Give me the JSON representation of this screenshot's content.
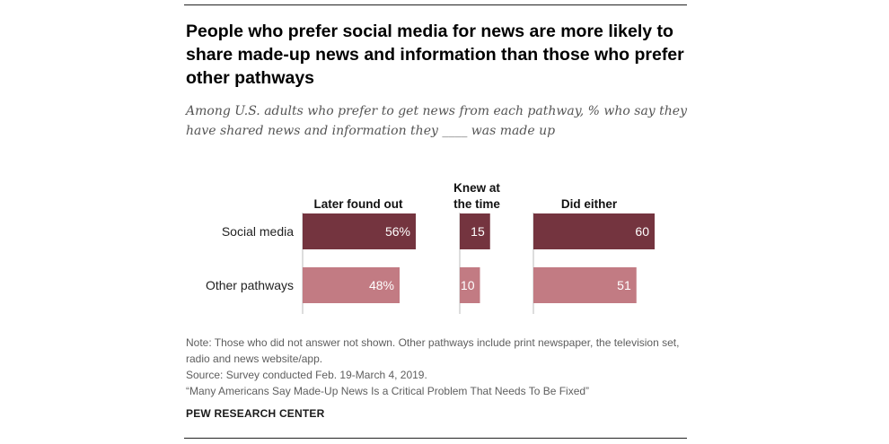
{
  "title": "People who prefer social media for news are more likely to share made-up news and information than those who prefer other pathways",
  "subtitle": "Among U.S. adults who prefer to get news from each pathway, % who say they have shared news and information they ____ was made up",
  "colors": {
    "social_media": "#74343f",
    "other_pathways": "#c27b83",
    "axis": "#bbbbbb"
  },
  "chart_data": {
    "type": "bar",
    "orientation": "horizontal",
    "categories": [
      "Social media",
      "Other pathways"
    ],
    "series": [
      {
        "name": "Later found out",
        "labels": [
          "56%",
          "48%"
        ],
        "values": [
          56,
          48
        ]
      },
      {
        "name": "Knew at the time",
        "labels": [
          "15",
          "10"
        ],
        "values": [
          15,
          10
        ]
      },
      {
        "name": "Did either",
        "labels": [
          "60",
          "51"
        ],
        "values": [
          60,
          51
        ]
      }
    ],
    "xlim": [
      0,
      100
    ]
  },
  "notes": {
    "note": "Note: Those who did not answer not shown. Other pathways include print newspaper, the television set, radio and news website/app.",
    "source": "Source: Survey conducted Feb. 19-March 4, 2019.",
    "report": "“Many Americans Say Made-Up News Is a Critical Problem That Needs To Be Fixed”",
    "brand": "PEW RESEARCH CENTER"
  }
}
